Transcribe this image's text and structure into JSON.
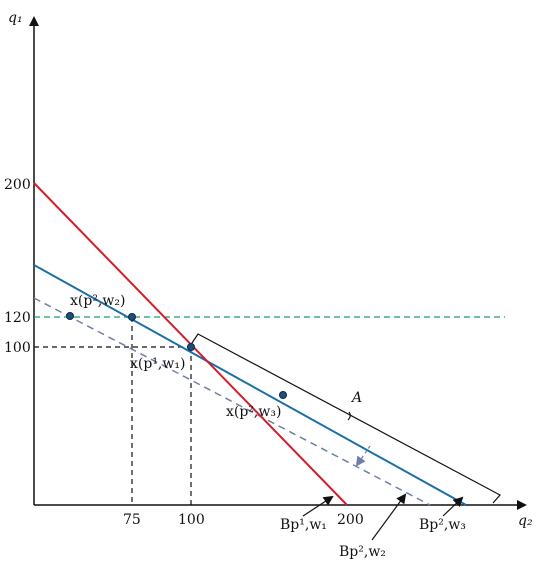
{
  "axes": {
    "x_label": "q₂",
    "y_label": "q₁",
    "x_ticks": [
      "75",
      "100",
      "200"
    ],
    "y_ticks": [
      "200",
      "120",
      "100"
    ]
  },
  "colors": {
    "red_line": "#d21f2b",
    "blue_line": "#1a6fa8",
    "dashed_blue": "#6f7fa8",
    "green_dashed": "#1f9c6b",
    "black": "#111111",
    "point_fill": "#1f4e79"
  },
  "labels": {
    "pt_p2_w2": "x(p²,w₂)",
    "pt_p1_w1": "x(p¹,w₁)",
    "pt_p2_w3": "x(p²,w₃)",
    "A": "A",
    "B_p1_w1": "Bp¹,w₁",
    "B_p2_w2": "Bp²,w₂",
    "B_p2_w3": "Bp²,w₃"
  }
}
